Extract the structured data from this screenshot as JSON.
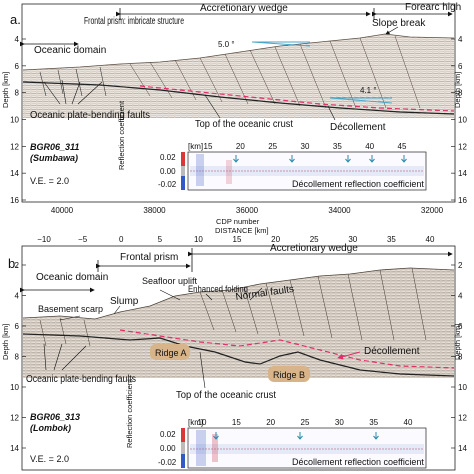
{
  "panel_a": {
    "letter": "a.",
    "labels": {
      "oceanic_domain": "Oceanic domain",
      "frontal_prism": "Frontal prism: imbricate structure",
      "accretionary_wedge": "Accretionary wedge",
      "forearc_high": "Forearc high",
      "slope_break": "Slope break",
      "angle_top": "5.0 °",
      "angle_bottom": "4.1 °",
      "oceanic_faults": "Oceanic plate-bending faults",
      "top_crust": "Top of the oceanic crust",
      "decollement": "Décollement",
      "profile_id": "BGR06_311",
      "region": "(Sumbawa)",
      "ve": "V.E. = 2.0"
    },
    "axis": {
      "ylabel": "Depth [km]",
      "yticks": [
        "4",
        "6",
        "8",
        "10",
        "12",
        "14",
        "16"
      ],
      "xticks": [
        "40000",
        "38000",
        "36000",
        "34000",
        "32000"
      ],
      "xlabel": "CDP number"
    },
    "inset": {
      "km_label": "[km]",
      "km_ticks": [
        "15",
        "20",
        "25",
        "30",
        "35",
        "40",
        "45"
      ],
      "ylabel": "Reflection coefficient",
      "yticks": [
        "0.02",
        "0.00",
        "-0.02"
      ],
      "title": "Décollement reflection coefficient"
    }
  },
  "distance_axis": {
    "label": "DISTANCE [km]",
    "ticks": [
      "−10",
      "−5",
      "0",
      "5",
      "10",
      "15",
      "20",
      "25",
      "30",
      "35",
      "40"
    ]
  },
  "panel_b": {
    "letter": "b.",
    "labels": {
      "oceanic_domain": "Oceanic domain",
      "frontal_prism": "Frontal prism",
      "accretionary_wedge": "Accretionary wedge",
      "seafloor_uplift": "Seafloor uplift",
      "enhanced_folding": "Enhanced folding",
      "normal_faults": "Normal faults",
      "basement_scarp": "Basement scarp",
      "slump": "Slump",
      "ridge_a": "Ridge A",
      "ridge_b": "Ridge B",
      "decollement": "Décollement",
      "oceanic_faults": "Oceanic plate-bending faults",
      "top_crust": "Top of the oceanic crust",
      "profile_id": "BGR06_313",
      "region": "(Lombok)",
      "ve": "V.E. = 2.0"
    },
    "axis": {
      "ylabel": "Depth [km]",
      "yticks": [
        "2",
        "4",
        "6",
        "8",
        "10",
        "12",
        "14"
      ]
    },
    "inset": {
      "km_label": "[km]",
      "km_ticks": [
        "10",
        "15",
        "20",
        "25",
        "30",
        "35",
        "40"
      ],
      "ylabel": "Reflection coefficient",
      "yticks": [
        "0.02",
        "0.00",
        "-0.02"
      ],
      "title": "Décollement reflection coefficient"
    }
  },
  "colors": {
    "seismic": "#8a7a6a",
    "decollement": "#e0306a",
    "ridge": "#d8b48a",
    "angle_line": "#4aa6c8",
    "inset_arrow": "#2a8aa8"
  }
}
